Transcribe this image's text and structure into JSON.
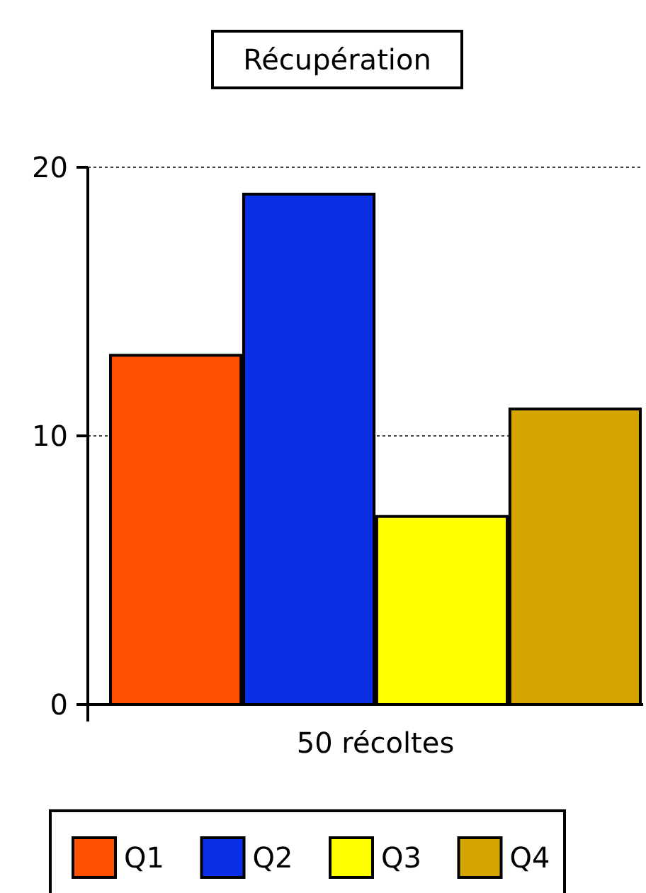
{
  "chart_data": {
    "type": "bar",
    "title": "Récupération",
    "categories": [
      null
    ],
    "xlabel": "50 récoltes",
    "series": [
      {
        "name": "Q1",
        "color": "#ff4f00",
        "values": [
          13
        ]
      },
      {
        "name": "Q2",
        "color": "#0b2fe6",
        "values": [
          19
        ]
      },
      {
        "name": "Q3",
        "color": "#ffff00",
        "values": [
          7
        ]
      },
      {
        "name": "Q4",
        "color": "#d4a500",
        "values": [
          11
        ]
      }
    ],
    "ylim": [
      0,
      20
    ],
    "yticks": [
      0,
      10,
      20
    ],
    "grid": "y",
    "legend": "bottom"
  }
}
